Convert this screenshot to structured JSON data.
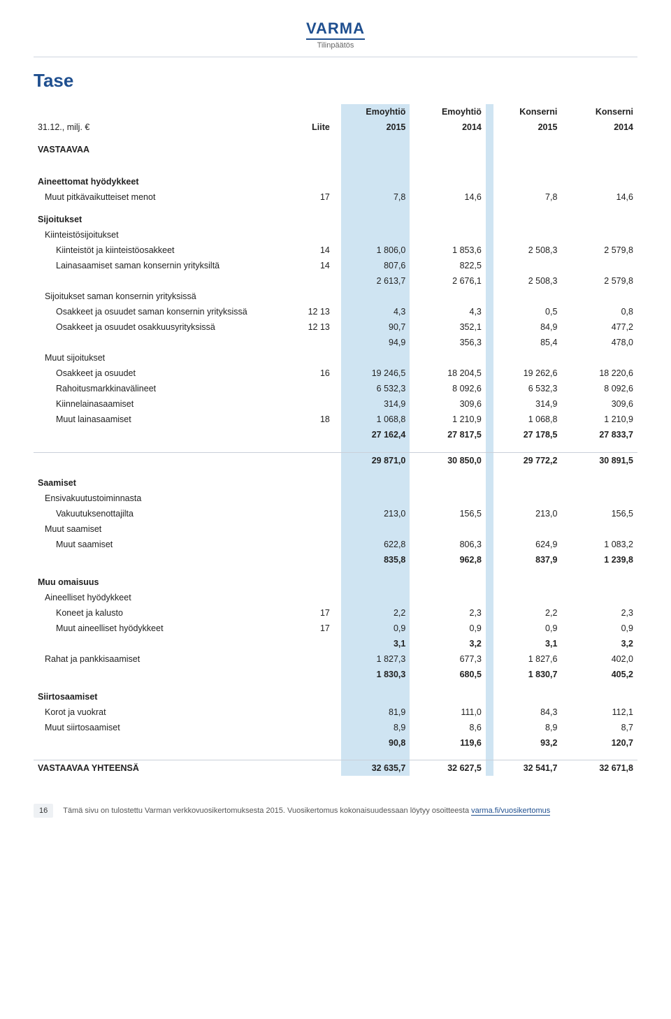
{
  "brand": "VARMA",
  "brand_sub": "Tilinpäätös",
  "page_title": "Tase",
  "header": {
    "left_line1": "31.12., milj. €",
    "note_label": "Liite",
    "cols": [
      {
        "top": "Emoyhtiö",
        "bot": "2015"
      },
      {
        "top": "Emoyhtiö",
        "bot": "2014"
      },
      {
        "top": "Konserni",
        "bot": "2015"
      },
      {
        "top": "Konserni",
        "bot": "2014"
      }
    ]
  },
  "hl_cols": [
    3,
    6
  ],
  "sections": [
    {
      "type": "head",
      "label": "VASTAAVAA"
    },
    {
      "type": "spacer"
    },
    {
      "type": "head",
      "label": "Aineettomat hyödykkeet"
    },
    {
      "type": "row",
      "label": "Muut pitkävaikutteiset menot",
      "indent": 1,
      "note": "17",
      "vals": [
        "7,8",
        "14,6",
        "7,8",
        "14,6"
      ]
    },
    {
      "type": "head",
      "label": "Sijoitukset"
    },
    {
      "type": "row",
      "label": "Kiinteistösijoitukset",
      "indent": 1,
      "vals": [
        "",
        "",
        "",
        ""
      ]
    },
    {
      "type": "row",
      "label": "Kiinteistöt ja kiinteistöosakkeet",
      "indent": 2,
      "note": "14",
      "vals": [
        "1 806,0",
        "1 853,6",
        "2 508,3",
        "2 579,8"
      ]
    },
    {
      "type": "row",
      "label": "Lainasaamiset saman konsernin yrityksiltä",
      "indent": 2,
      "note": "14",
      "vals": [
        "807,6",
        "822,5",
        "",
        ""
      ]
    },
    {
      "type": "row",
      "label": "",
      "indent": 2,
      "vals": [
        "2 613,7",
        "2 676,1",
        "2 508,3",
        "2 579,8"
      ]
    },
    {
      "type": "row",
      "label": "Sijoitukset saman konsernin yrityksissä",
      "indent": 1,
      "vals": [
        "",
        "",
        "",
        ""
      ]
    },
    {
      "type": "row",
      "label": "Osakkeet ja osuudet saman konsernin yrityksissä",
      "indent": 2,
      "note": "12  13",
      "vals": [
        "4,3",
        "4,3",
        "0,5",
        "0,8"
      ]
    },
    {
      "type": "row",
      "label": "Osakkeet ja osuudet osakkuusyrityksissä",
      "indent": 2,
      "note": "12  13",
      "vals": [
        "90,7",
        "352,1",
        "84,9",
        "477,2"
      ]
    },
    {
      "type": "row",
      "label": "",
      "indent": 2,
      "vals": [
        "94,9",
        "356,3",
        "85,4",
        "478,0"
      ]
    },
    {
      "type": "row",
      "label": "Muut sijoitukset",
      "indent": 1,
      "vals": [
        "",
        "",
        "",
        ""
      ]
    },
    {
      "type": "row",
      "label": "Osakkeet ja osuudet",
      "indent": 2,
      "note": "16",
      "vals": [
        "19 246,5",
        "18 204,5",
        "19 262,6",
        "18 220,6"
      ]
    },
    {
      "type": "row",
      "label": "Rahoitusmarkkinavälineet",
      "indent": 2,
      "vals": [
        "6 532,3",
        "8 092,6",
        "6 532,3",
        "8 092,6"
      ]
    },
    {
      "type": "row",
      "label": "Kiinnelainasaamiset",
      "indent": 2,
      "vals": [
        "314,9",
        "309,6",
        "314,9",
        "309,6"
      ]
    },
    {
      "type": "row",
      "label": "Muut lainasaamiset",
      "indent": 2,
      "note": "18",
      "vals": [
        "1 068,8",
        "1 210,9",
        "1 068,8",
        "1 210,9"
      ]
    },
    {
      "type": "row",
      "label": "",
      "indent": 2,
      "bold": true,
      "vals": [
        "27 162,4",
        "27 817,5",
        "27 178,5",
        "27 833,7"
      ]
    },
    {
      "type": "spacer"
    },
    {
      "type": "row",
      "label": "",
      "indent": 0,
      "bold": true,
      "rule": true,
      "vals": [
        "29 871,0",
        "30 850,0",
        "29 772,2",
        "30 891,5"
      ]
    },
    {
      "type": "head",
      "label": "Saamiset"
    },
    {
      "type": "row",
      "label": "Ensivakuutustoiminnasta",
      "indent": 1,
      "vals": [
        "",
        "",
        "",
        ""
      ]
    },
    {
      "type": "row",
      "label": "Vakuutuksenottajilta",
      "indent": 2,
      "vals": [
        "213,0",
        "156,5",
        "213,0",
        "156,5"
      ]
    },
    {
      "type": "row",
      "label": "Muut saamiset",
      "indent": 1,
      "vals": [
        "",
        "",
        "",
        ""
      ]
    },
    {
      "type": "row",
      "label": "Muut saamiset",
      "indent": 2,
      "vals": [
        "622,8",
        "806,3",
        "624,9",
        "1 083,2"
      ]
    },
    {
      "type": "row",
      "label": "",
      "indent": 2,
      "bold": true,
      "vals": [
        "835,8",
        "962,8",
        "837,9",
        "1 239,8"
      ]
    },
    {
      "type": "head",
      "label": "Muu omaisuus"
    },
    {
      "type": "row",
      "label": "Aineelliset hyödykkeet",
      "indent": 1,
      "vals": [
        "",
        "",
        "",
        ""
      ]
    },
    {
      "type": "row",
      "label": "Koneet ja kalusto",
      "indent": 2,
      "note": "17",
      "vals": [
        "2,2",
        "2,3",
        "2,2",
        "2,3"
      ]
    },
    {
      "type": "row",
      "label": "Muut aineelliset hyödykkeet",
      "indent": 2,
      "note": "17",
      "vals": [
        "0,9",
        "0,9",
        "0,9",
        "0,9"
      ]
    },
    {
      "type": "row",
      "label": "",
      "indent": 2,
      "bold": true,
      "vals": [
        "3,1",
        "3,2",
        "3,1",
        "3,2"
      ]
    },
    {
      "type": "row",
      "label": "Rahat ja pankkisaamiset",
      "indent": 1,
      "vals": [
        "1 827,3",
        "677,3",
        "1 827,6",
        "402,0"
      ]
    },
    {
      "type": "row",
      "label": "",
      "indent": 1,
      "bold": true,
      "vals": [
        "1 830,3",
        "680,5",
        "1 830,7",
        "405,2"
      ]
    },
    {
      "type": "head",
      "label": "Siirtosaamiset"
    },
    {
      "type": "row",
      "label": "Korot ja vuokrat",
      "indent": 1,
      "vals": [
        "81,9",
        "111,0",
        "84,3",
        "112,1"
      ]
    },
    {
      "type": "row",
      "label": "Muut siirtosaamiset",
      "indent": 1,
      "vals": [
        "8,9",
        "8,6",
        "8,9",
        "8,7"
      ]
    },
    {
      "type": "row",
      "label": "",
      "indent": 1,
      "bold": true,
      "vals": [
        "90,8",
        "119,6",
        "93,2",
        "120,7"
      ]
    },
    {
      "type": "spacer"
    },
    {
      "type": "grand",
      "label": "VASTAAVAA YHTEENSÄ",
      "rule": true,
      "vals": [
        "32 635,7",
        "32 627,5",
        "32 541,7",
        "32 671,8"
      ]
    }
  ],
  "footer": {
    "page": "16",
    "text": "Tämä sivu on tulostettu Varman verkkovuosikertomuksesta 2015. Vuosikertomus kokonaisuudessaan löytyy osoitteesta ",
    "link": "varma.fi/vuosikertomus"
  }
}
